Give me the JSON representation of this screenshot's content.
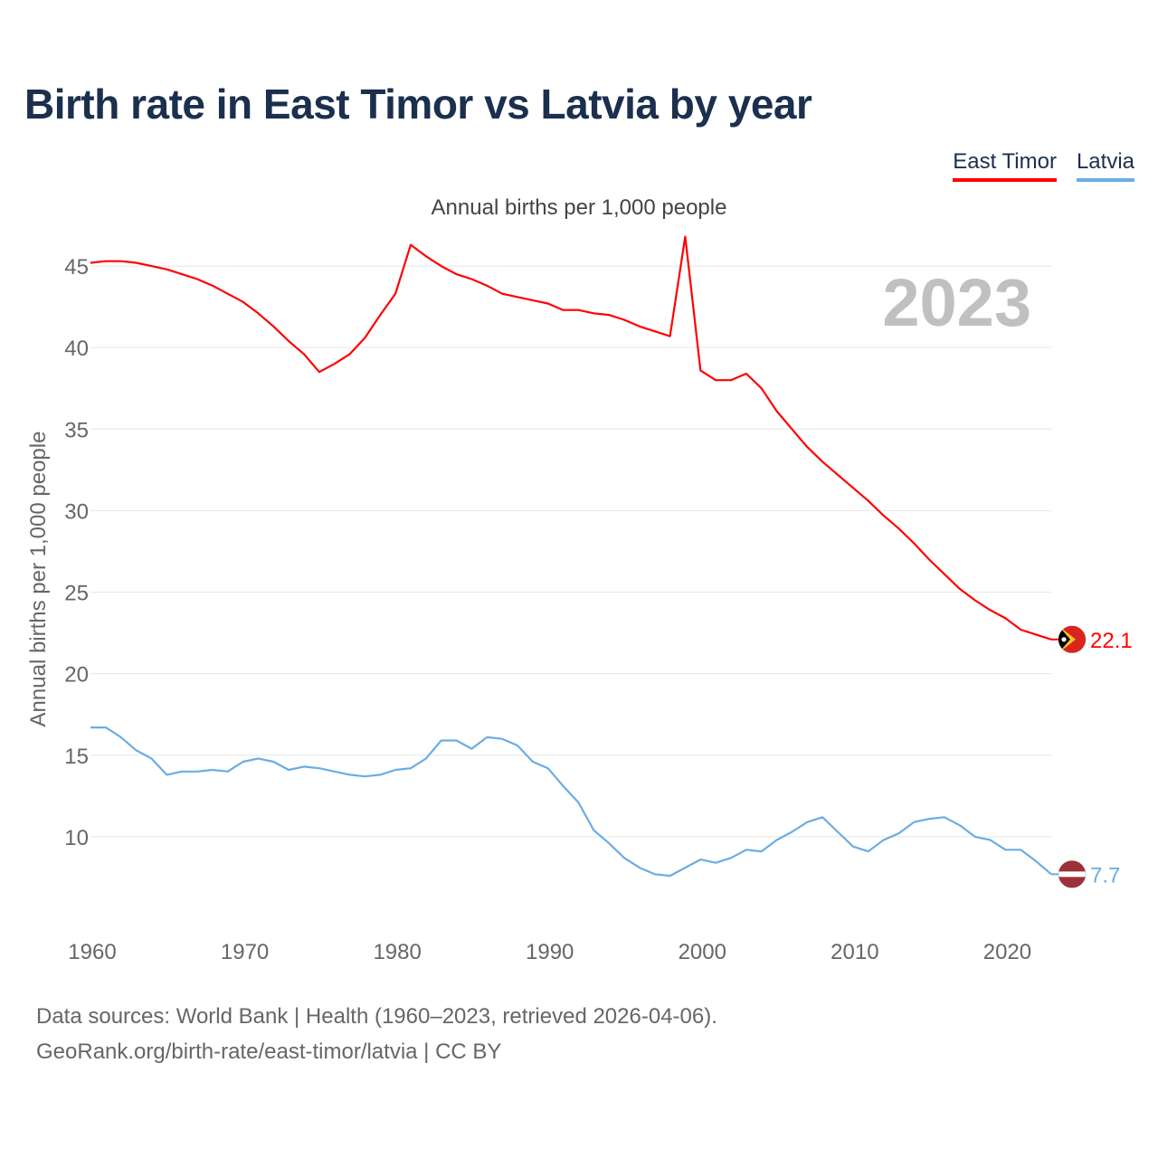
{
  "title": "Birth rate in East Timor vs Latvia by year",
  "subtitle": "Annual births per 1,000 people",
  "legend": [
    {
      "label": "East Timor",
      "color": "#ff0000"
    },
    {
      "label": "Latvia",
      "color": "#6aade4"
    }
  ],
  "year_label": "2023",
  "footer": {
    "line1": "Data sources: World Bank | Health (1960–2023, retrieved 2026-04-06).",
    "line2": "GeoRank.org/birth-rate/east-timor/latvia | CC BY"
  },
  "chart_data": {
    "type": "line",
    "title": "Birth rate in East Timor vs Latvia by year",
    "xlabel": "",
    "ylabel": "Annual births per 1,000 people",
    "xlim": [
      1960,
      2023
    ],
    "ylim": [
      5,
      48
    ],
    "x_ticks": [
      1960,
      1970,
      1980,
      1990,
      2000,
      2010,
      2020
    ],
    "y_ticks": [
      10,
      15,
      20,
      25,
      30,
      35,
      40,
      45
    ],
    "grid": true,
    "x": [
      1960,
      1961,
      1962,
      1963,
      1964,
      1965,
      1966,
      1967,
      1968,
      1969,
      1970,
      1971,
      1972,
      1973,
      1974,
      1975,
      1976,
      1977,
      1978,
      1979,
      1980,
      1981,
      1982,
      1983,
      1984,
      1985,
      1986,
      1987,
      1988,
      1989,
      1990,
      1991,
      1992,
      1993,
      1994,
      1995,
      1996,
      1997,
      1998,
      1999,
      2000,
      2001,
      2002,
      2003,
      2004,
      2005,
      2006,
      2007,
      2008,
      2009,
      2010,
      2011,
      2012,
      2013,
      2014,
      2015,
      2016,
      2017,
      2018,
      2019,
      2020,
      2021,
      2022,
      2023
    ],
    "series": [
      {
        "name": "East Timor",
        "color": "#ff0000",
        "end_label": "22.1",
        "values": [
          45.2,
          45.3,
          45.3,
          45.2,
          45.0,
          44.8,
          44.5,
          44.2,
          43.8,
          43.3,
          42.8,
          42.1,
          41.3,
          40.4,
          39.6,
          38.5,
          39.0,
          39.6,
          40.6,
          42.0,
          43.3,
          46.3,
          45.6,
          45.0,
          44.5,
          44.2,
          43.8,
          43.3,
          43.1,
          42.9,
          42.7,
          42.3,
          42.3,
          42.1,
          42.0,
          41.7,
          41.3,
          41.0,
          40.7,
          46.8,
          38.6,
          38.0,
          38.0,
          38.4,
          37.5,
          36.1,
          35.0,
          33.9,
          33.0,
          32.2,
          31.4,
          30.6,
          29.7,
          28.9,
          28.0,
          27.0,
          26.1,
          25.2,
          24.5,
          23.9,
          23.4,
          22.7,
          22.4,
          22.1
        ]
      },
      {
        "name": "Latvia",
        "color": "#6aade4",
        "end_label": "7.7",
        "values": [
          16.7,
          16.7,
          16.1,
          15.3,
          14.8,
          13.8,
          14.0,
          14.0,
          14.1,
          14.0,
          14.6,
          14.8,
          14.6,
          14.1,
          14.3,
          14.2,
          14.0,
          13.8,
          13.7,
          13.8,
          14.1,
          14.2,
          14.8,
          15.9,
          15.9,
          15.4,
          16.1,
          16.0,
          15.6,
          14.6,
          14.2,
          13.1,
          12.1,
          10.4,
          9.6,
          8.7,
          8.1,
          7.7,
          7.6,
          8.1,
          8.6,
          8.4,
          8.7,
          9.2,
          9.1,
          9.8,
          10.3,
          10.9,
          11.2,
          10.3,
          9.4,
          9.1,
          9.8,
          10.2,
          10.9,
          11.1,
          11.2,
          10.7,
          10.0,
          9.8,
          9.2,
          9.2,
          8.5,
          7.7
        ]
      }
    ]
  }
}
